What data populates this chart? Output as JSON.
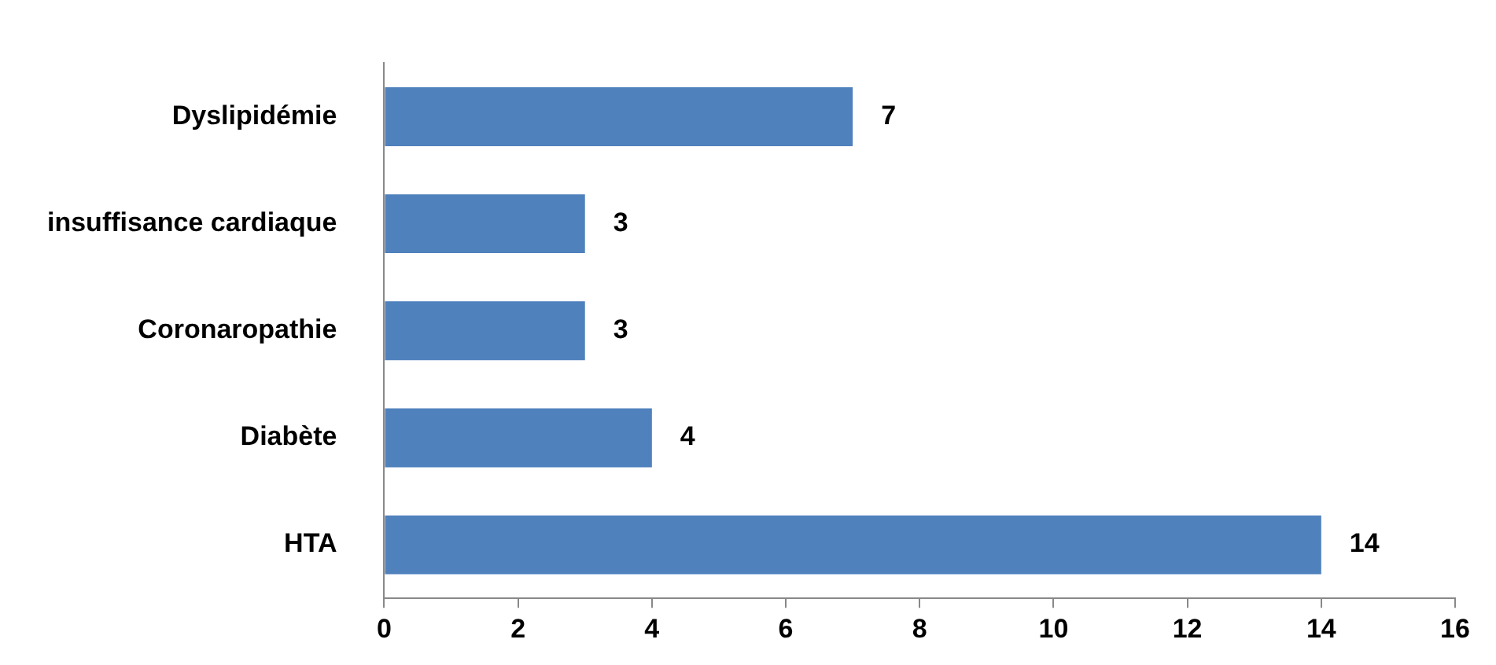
{
  "chart_data": {
    "type": "bar",
    "orientation": "horizontal",
    "categories": [
      "Dyslipidémie",
      "insuffisance cardiaque",
      "Coronaropathie",
      "Diabète",
      "HTA"
    ],
    "values": [
      7,
      3,
      3,
      4,
      14
    ],
    "color": "#4f81bd",
    "xlim": [
      0,
      16
    ],
    "xticks": [
      0,
      2,
      4,
      6,
      8,
      10,
      12,
      14,
      16
    ],
    "data_labels": true
  }
}
